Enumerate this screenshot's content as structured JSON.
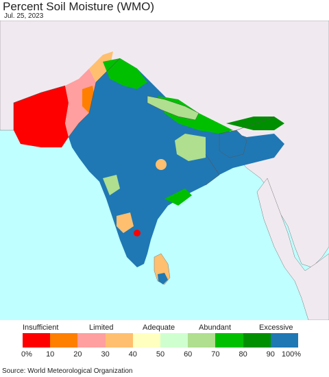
{
  "title": "Percent Soil Moisture (WMO)",
  "date": "Jul. 25, 2023",
  "legend": {
    "categories": [
      "Insufficient",
      "Limited",
      "Adequate",
      "Abundant",
      "Excessive"
    ],
    "colors": [
      "#ff0000",
      "#ff7f00",
      "#ff9f9f",
      "#ffbf6f",
      "#ffffbf",
      "#cfffcf",
      "#afdf8f",
      "#00bf00",
      "#008f00",
      "#1f78b4"
    ],
    "ticks": [
      "0%",
      "10",
      "20",
      "30",
      "40",
      "50",
      "60",
      "70",
      "80",
      "90",
      "100%"
    ]
  },
  "source": "Source: World Meteorological Organization"
}
